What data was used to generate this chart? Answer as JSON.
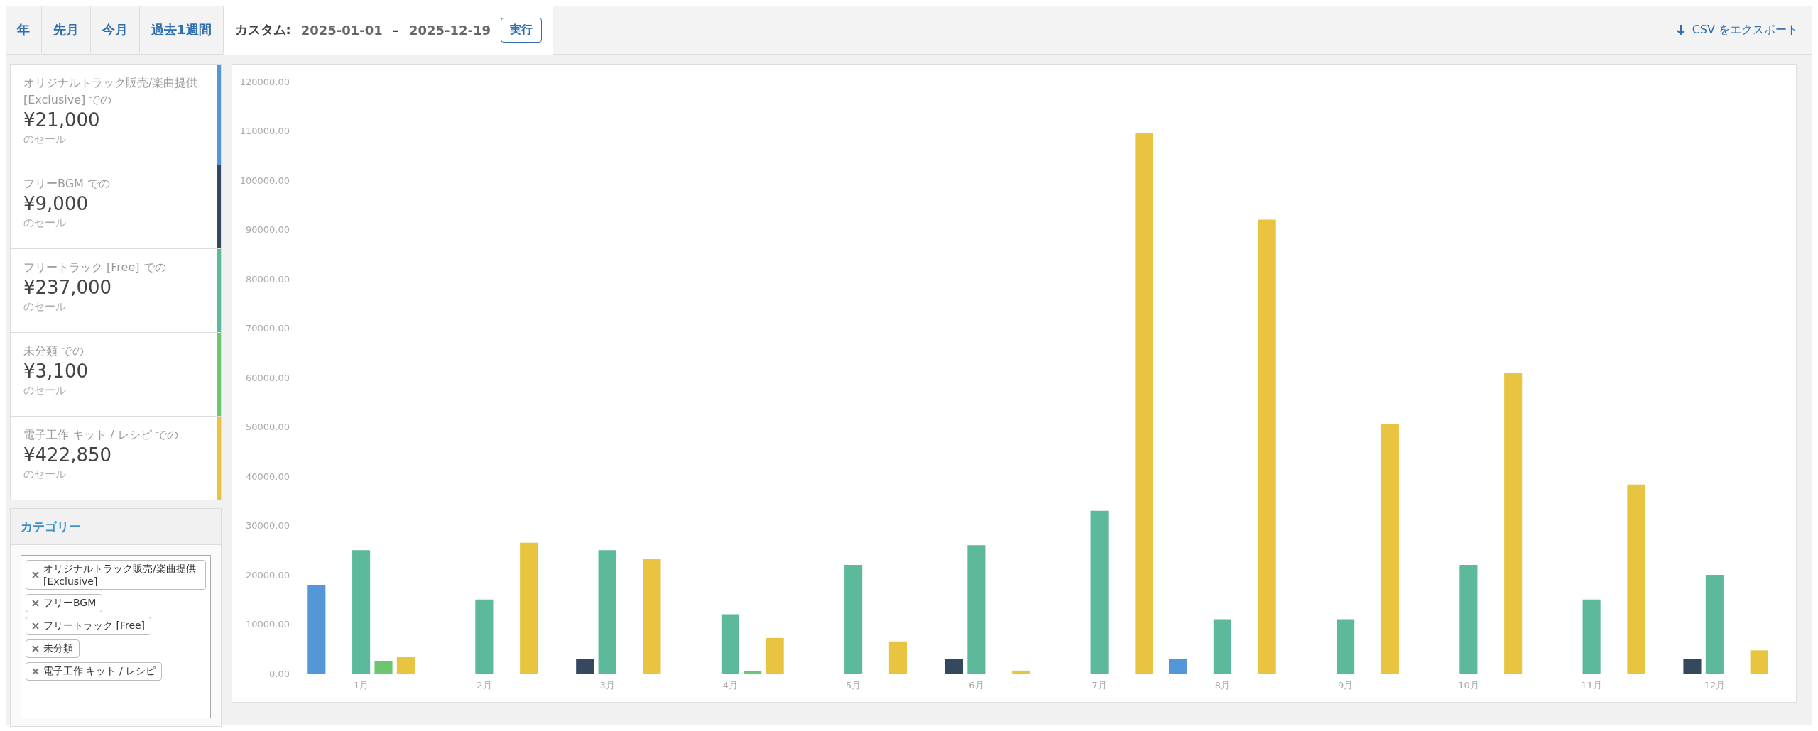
{
  "chart_data": [
    {
      "type": "other",
      "annotations": [
        "年",
        "先月",
        "今月",
        "過去1週間",
        "カスタム:",
        "2025-01-01",
        "–",
        "2025-12-19",
        "実行",
        "CSV をエクスポート",
        "オリジナルトラック販売/楽曲提供 [Exclusive] での",
        "¥21,000",
        "のセール",
        "フリーBGM での",
        "¥9,000",
        "のセール",
        "フリートラック [Free] での",
        "¥237,000",
        "のセール",
        "未分類 での",
        "¥3,100",
        "のセール",
        "電子工作 キット / レシピ での",
        "¥422,850",
        "のセール",
        "カテゴリー",
        "オリジナルトラック販売/楽曲提供 [Exclusive]",
        "フリーBGM",
        "フリートラック [Free]",
        "未分類",
        "電子工作 キット / レシピ"
      ]
    },
    {
      "type": "bar",
      "categories": [
        "1月",
        "2月",
        "3月",
        "4月",
        "5月",
        "6月",
        "7月",
        "8月",
        "9月",
        "10月",
        "11月",
        "12月"
      ],
      "series": [
        {
          "color": "#5497d8",
          "values": [
            18000,
            0,
            0,
            0,
            0,
            0,
            0,
            3000,
            0,
            0,
            0,
            0
          ]
        },
        {
          "color": "#34495e",
          "values": [
            0,
            0,
            3000,
            0,
            0,
            3000,
            0,
            0,
            0,
            0,
            0,
            3000
          ]
        },
        {
          "color": "#5cb99b",
          "values": [
            25000,
            15000,
            25000,
            12000,
            22000,
            26000,
            33000,
            11000,
            11000,
            22000,
            15000,
            20000
          ]
        },
        {
          "color": "#6cc56f",
          "values": [
            2600,
            0,
            0,
            500,
            0,
            0,
            0,
            0,
            0,
            0,
            0,
            0
          ]
        },
        {
          "color": "#e8c440",
          "values": [
            3300,
            26500,
            23300,
            7200,
            6500,
            600,
            109500,
            92000,
            50500,
            61000,
            38300,
            4700
          ]
        }
      ],
      "ylim": [
        0,
        120000
      ],
      "yticks": [
        {
          "value": 0,
          "label": "0.00"
        },
        {
          "value": 10000,
          "label": "10000.00"
        },
        {
          "value": 20000,
          "label": "20000.00"
        },
        {
          "value": 30000,
          "label": "30000.00"
        },
        {
          "value": 40000,
          "label": "40000.00"
        },
        {
          "value": 50000,
          "label": "50000.00"
        },
        {
          "value": 60000,
          "label": "60000.00"
        },
        {
          "value": 70000,
          "label": "70000.00"
        },
        {
          "value": 80000,
          "label": "80000.00"
        },
        {
          "value": 90000,
          "label": "90000.00"
        },
        {
          "value": 100000,
          "label": "100000.00"
        },
        {
          "value": 110000,
          "label": "110000.00"
        },
        {
          "value": 120000,
          "label": "120000.00"
        }
      ]
    }
  ]
}
